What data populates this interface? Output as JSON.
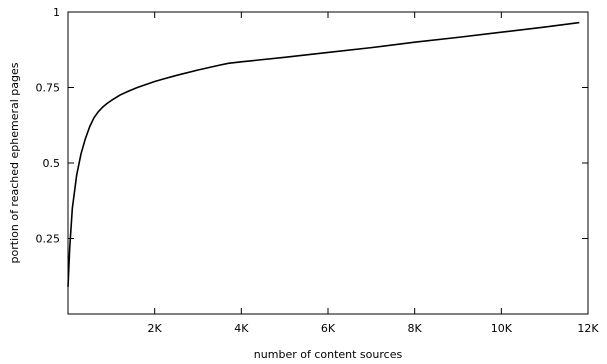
{
  "chart_data": {
    "type": "line",
    "title": "",
    "xlabel": "number of content sources",
    "ylabel": "portion of reached ephemeral pages",
    "xlim": [
      0,
      12000
    ],
    "ylim": [
      0,
      1
    ],
    "grid": false,
    "legend": "none",
    "x_ticks": [
      {
        "value": 2000,
        "label": "2K"
      },
      {
        "value": 4000,
        "label": "4K"
      },
      {
        "value": 6000,
        "label": "6K"
      },
      {
        "value": 8000,
        "label": "8K"
      },
      {
        "value": 10000,
        "label": "10K"
      },
      {
        "value": 12000,
        "label": "12K"
      }
    ],
    "y_ticks": [
      {
        "value": 0.25,
        "label": "0.25"
      },
      {
        "value": 0.5,
        "label": "0.5"
      },
      {
        "value": 0.75,
        "label": "0.75"
      },
      {
        "value": 1,
        "label": "1"
      }
    ],
    "series": [
      {
        "color": "#000000",
        "x": [
          0,
          40,
          100,
          200,
          300,
          400,
          500,
          600,
          700,
          800,
          900,
          1000,
          1200,
          1400,
          1600,
          1800,
          2000,
          2200,
          2500,
          3000,
          3500,
          3700,
          4000,
          5000,
          6000,
          7000,
          8000,
          9000,
          10000,
          11000,
          11800
        ],
        "y": [
          0.09,
          0.22,
          0.35,
          0.46,
          0.53,
          0.58,
          0.62,
          0.65,
          0.67,
          0.685,
          0.697,
          0.707,
          0.725,
          0.738,
          0.75,
          0.76,
          0.77,
          0.778,
          0.79,
          0.808,
          0.824,
          0.83,
          0.835,
          0.85,
          0.866,
          0.882,
          0.9,
          0.916,
          0.933,
          0.95,
          0.965
        ]
      }
    ]
  }
}
